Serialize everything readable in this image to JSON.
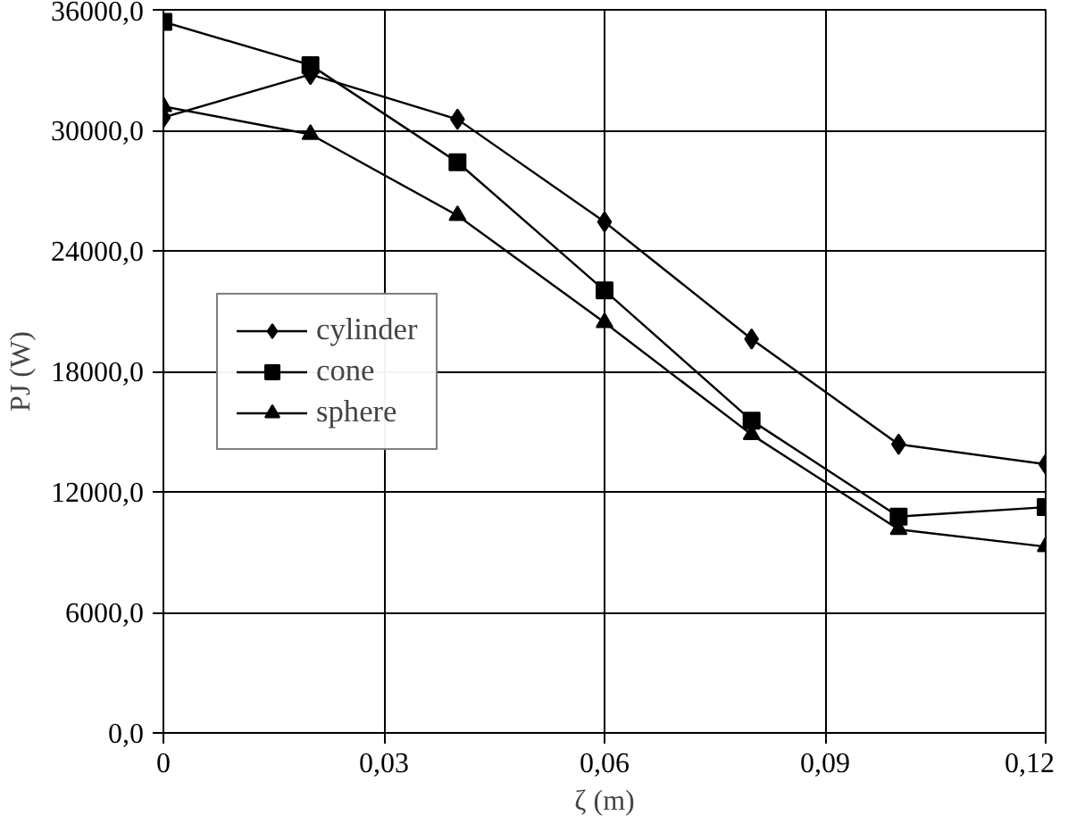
{
  "chart_data": {
    "type": "line",
    "xlabel": "ζ (m)",
    "ylabel": "PJ (W)",
    "x": [
      0,
      0.02,
      0.04,
      0.06,
      0.08,
      0.1,
      0.12
    ],
    "series": [
      {
        "name": "cylinder",
        "color": "#000000",
        "marker": "diamond",
        "values": [
          30640,
          32780,
          30550,
          25440,
          19610,
          14370,
          13380
        ]
      },
      {
        "name": "cone",
        "color": "#000000",
        "marker": "square",
        "values": [
          35400,
          33250,
          28410,
          22030,
          15550,
          10770,
          11240
        ]
      },
      {
        "name": "sphere",
        "color": "#000000",
        "marker": "triangle",
        "values": [
          31190,
          29800,
          25760,
          20430,
          14850,
          10130,
          9270
        ]
      }
    ],
    "xlim": [
      0,
      0.12
    ],
    "ylim": [
      0,
      36000
    ],
    "xticks": [
      0,
      {
        "value": 0.03,
        "label": "0,03"
      },
      {
        "value": 0.06,
        "label": "0,06"
      },
      {
        "value": 0.09,
        "label": "0,09"
      },
      {
        "value": 0.12,
        "label": "0,12"
      }
    ],
    "yticks": [
      {
        "value": 0,
        "label": "0,0"
      },
      {
        "value": 6000,
        "label": "6000,0"
      },
      {
        "value": 12000,
        "label": "12000,0"
      },
      {
        "value": 18000,
        "label": "18000,0"
      },
      {
        "value": 24000,
        "label": "24000,0"
      },
      {
        "value": 30000,
        "label": "30000,0"
      },
      {
        "value": 36000,
        "label": "36000,0"
      }
    ],
    "grid": true,
    "legend": "left",
    "line_style": "solid"
  }
}
